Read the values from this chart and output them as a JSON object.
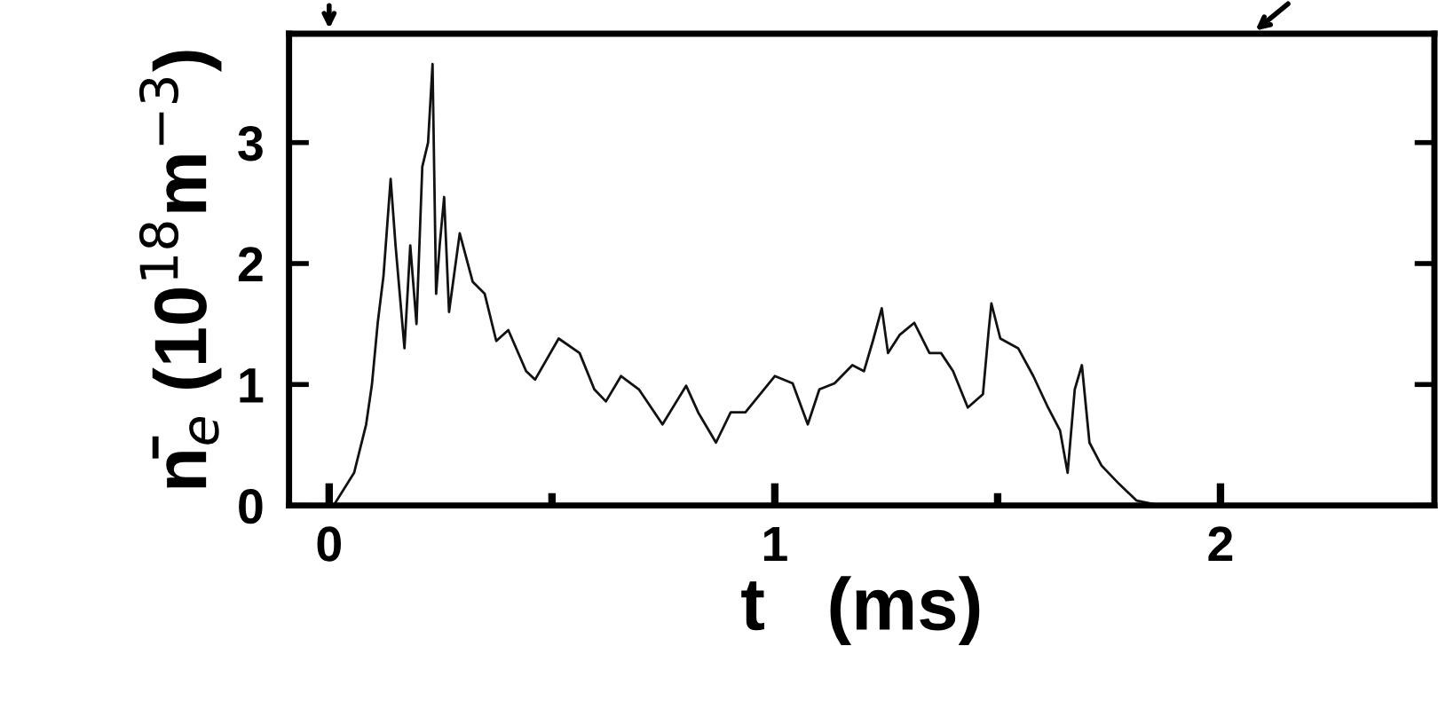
{
  "chart_data": {
    "type": "line",
    "xlabel": "t   (ms)",
    "ylabel": "n̄$_{e}$ (10$^{18}$m$^{−3}$)",
    "xlim": [
      -0.09,
      2.48
    ],
    "ylim": [
      0,
      3.9
    ],
    "xticks": [
      0,
      {
        "value": 0.5,
        "label": null
      },
      1,
      {
        "value": 1.5,
        "label": null
      },
      2
    ],
    "yticks": [
      0,
      1,
      2,
      3
    ],
    "grid": false,
    "legend": false,
    "marker": "none",
    "line_style": "solid",
    "series": [
      {
        "color": "#111111",
        "x": [
          0.01,
          0.056,
          0.083,
          0.096,
          0.109,
          0.122,
          0.138,
          0.149,
          0.169,
          0.182,
          0.196,
          0.209,
          0.222,
          0.232,
          0.24,
          0.248,
          0.258,
          0.269,
          0.293,
          0.322,
          0.349,
          0.375,
          0.402,
          0.442,
          0.462,
          0.515,
          0.562,
          0.595,
          0.621,
          0.655,
          0.695,
          0.748,
          0.801,
          0.828,
          0.868,
          0.901,
          0.934,
          1.0,
          1.04,
          1.074,
          1.1,
          1.134,
          1.174,
          1.2,
          1.22,
          1.24,
          1.254,
          1.28,
          1.313,
          1.347,
          1.373,
          1.4,
          1.433,
          1.467,
          1.48,
          1.486,
          1.506,
          1.546,
          1.58,
          1.613,
          1.64,
          1.657,
          1.673,
          1.689,
          1.706,
          1.733,
          1.772,
          1.812,
          1.864,
          2.0,
          2.2,
          2.4,
          2.48
        ],
        "values": [
          0.0,
          0.27,
          0.67,
          1.0,
          1.51,
          1.9,
          2.7,
          2.15,
          1.3,
          2.15,
          1.5,
          2.8,
          3.0,
          3.65,
          1.75,
          2.15,
          2.55,
          1.6,
          2.25,
          1.85,
          1.75,
          1.36,
          1.45,
          1.11,
          1.04,
          1.38,
          1.26,
          0.96,
          0.86,
          1.07,
          0.96,
          0.67,
          0.99,
          0.77,
          0.52,
          0.77,
          0.77,
          1.07,
          1.01,
          0.67,
          0.96,
          1.01,
          1.16,
          1.11,
          1.36,
          1.63,
          1.26,
          1.41,
          1.51,
          1.26,
          1.26,
          1.11,
          0.81,
          0.92,
          1.45,
          1.67,
          1.38,
          1.3,
          1.07,
          0.81,
          0.62,
          0.27,
          0.96,
          1.16,
          0.52,
          0.33,
          0.18,
          0.04,
          0.0,
          0.0,
          0.0,
          0.0,
          0.0
        ]
      }
    ]
  }
}
